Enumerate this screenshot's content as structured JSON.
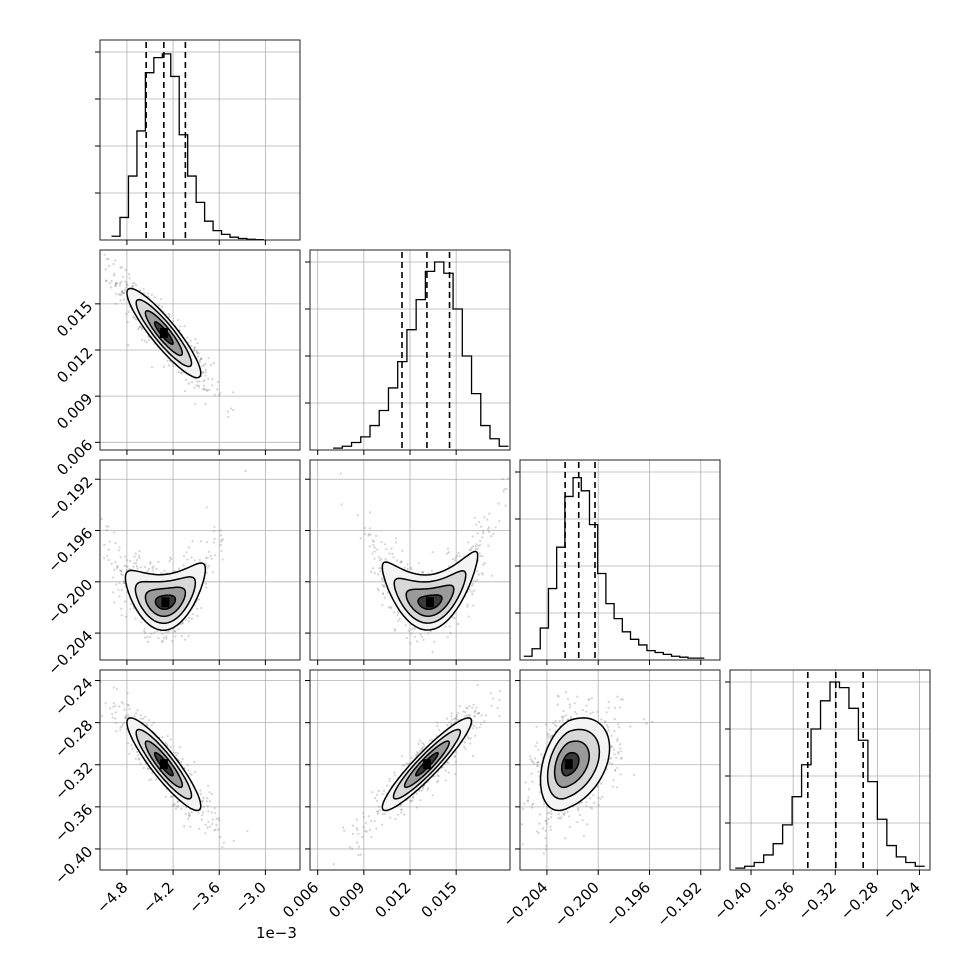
{
  "figure": {
    "x_offset_text": "1e−3"
  },
  "chart_data": {
    "type": "corner",
    "parameters": [
      {
        "index": 0,
        "range": [
          -5.15,
          -2.55
        ],
        "ticks": [
          -4.8,
          -4.2,
          -3.6,
          -3.0
        ],
        "tick_labels": [
          "−4.8",
          "−4.2",
          "−3.6",
          "−3.0"
        ],
        "quantiles": [
          -4.55,
          -4.32,
          -4.04
        ],
        "mode": -4.32,
        "scale_note": "1e−3",
        "hist_edges": [
          -5.0,
          -4.89,
          -4.78,
          -4.67,
          -4.56,
          -4.45,
          -4.34,
          -4.23,
          -4.12,
          -4.01,
          -3.9,
          -3.79,
          -3.68,
          -3.57,
          -3.46,
          -3.35,
          -3.24,
          -3.13,
          -3.02
        ],
        "hist_counts": [
          0.02,
          0.12,
          0.34,
          0.58,
          0.89,
          0.97,
          0.99,
          0.87,
          0.56,
          0.34,
          0.2,
          0.1,
          0.05,
          0.03,
          0.015,
          0.008,
          0.004,
          0.002
        ]
      },
      {
        "index": 1,
        "range": [
          0.0055,
          0.0185
        ],
        "ticks": [
          0.006,
          0.009,
          0.012,
          0.015
        ],
        "tick_labels": [
          "0.006",
          "0.009",
          "0.012",
          "0.015"
        ],
        "quantiles": [
          0.01148,
          0.0131,
          0.01457
        ],
        "hist_edges": [
          0.007,
          0.0076,
          0.0082,
          0.0088,
          0.0094,
          0.01,
          0.0106,
          0.0112,
          0.0118,
          0.0124,
          0.013,
          0.0136,
          0.0142,
          0.0148,
          0.0154,
          0.016,
          0.0166,
          0.0172,
          0.0178,
          0.0184
        ],
        "hist_counts": [
          0.01,
          0.02,
          0.04,
          0.07,
          0.13,
          0.21,
          0.33,
          0.47,
          0.64,
          0.8,
          0.95,
          1.0,
          0.94,
          0.75,
          0.5,
          0.3,
          0.13,
          0.06,
          0.02
        ]
      },
      {
        "index": 2,
        "range": [
          -0.2061,
          -0.1905
        ],
        "ticks": [
          -0.204,
          -0.2,
          -0.196,
          -0.192
        ],
        "tick_labels": [
          "−0.204",
          "−0.200",
          "−0.196",
          "−0.192"
        ],
        "quantiles": [
          -0.20258,
          -0.20152,
          -0.20025
        ],
        "hist_edges": [
          -0.2058,
          -0.20516,
          -0.20452,
          -0.20388,
          -0.20324,
          -0.2026,
          -0.20196,
          -0.20132,
          -0.20068,
          -0.20004,
          -0.1994,
          -0.19876,
          -0.19812,
          -0.19748,
          -0.19684,
          -0.1962,
          -0.19556,
          -0.19492,
          -0.19428,
          -0.19364,
          -0.193,
          -0.19236,
          -0.19172
        ],
        "hist_counts": [
          0.02,
          0.06,
          0.17,
          0.38,
          0.6,
          0.87,
          0.97,
          0.9,
          0.72,
          0.46,
          0.3,
          0.22,
          0.15,
          0.11,
          0.08,
          0.05,
          0.04,
          0.03,
          0.02,
          0.015,
          0.01,
          0.01
        ]
      },
      {
        "index": 3,
        "range": [
          -0.42,
          -0.23
        ],
        "ticks": [
          -0.4,
          -0.36,
          -0.32,
          -0.28,
          -0.24
        ],
        "tick_labels": [
          "−0.40",
          "−0.36",
          "−0.32",
          "−0.28",
          "−0.24"
        ],
        "quantiles": [
          -0.3461,
          -0.3195,
          -0.2935
        ],
        "hist_edges": [
          -0.415,
          -0.406,
          -0.397,
          -0.388,
          -0.379,
          -0.37,
          -0.361,
          -0.352,
          -0.343,
          -0.334,
          -0.325,
          -0.316,
          -0.307,
          -0.298,
          -0.289,
          -0.28,
          -0.271,
          -0.262,
          -0.253,
          -0.244,
          -0.235
        ],
        "hist_counts": [
          0.01,
          0.02,
          0.04,
          0.08,
          0.14,
          0.24,
          0.39,
          0.56,
          0.75,
          0.9,
          1.0,
          0.97,
          0.86,
          0.69,
          0.47,
          0.27,
          0.13,
          0.07,
          0.04,
          0.02
        ]
      }
    ],
    "pairs": [
      {
        "row": 1,
        "col": 0,
        "center": [
          -4.32,
          0.0131
        ],
        "sd": [
          0.24,
          0.00145
        ],
        "rho": -0.9
      },
      {
        "row": 2,
        "col": 0,
        "center": [
          -4.3,
          -0.2016
        ],
        "sd": [
          0.26,
          0.0011
        ],
        "rho": 0.15,
        "banana": "up"
      },
      {
        "row": 2,
        "col": 1,
        "center": [
          0.0133,
          -0.2016
        ],
        "sd": [
          0.00155,
          0.0011
        ],
        "rho": 0.2,
        "banana": "up"
      },
      {
        "row": 3,
        "col": 0,
        "center": [
          -4.32,
          -0.3195
        ],
        "sd": [
          0.24,
          0.022
        ],
        "rho": -0.9
      },
      {
        "row": 3,
        "col": 1,
        "center": [
          0.0131,
          -0.3195
        ],
        "sd": [
          0.00145,
          0.022
        ],
        "rho": 0.93
      },
      {
        "row": 3,
        "col": 2,
        "center": [
          -0.2023,
          -0.3195
        ],
        "sd": [
          0.0011,
          0.022
        ],
        "rho": 0.35,
        "skew": "right"
      }
    ],
    "contour_levels": [
      "0.5 sigma",
      "1 sigma",
      "1.5 sigma",
      "2 sigma"
    ],
    "grid": true,
    "colors": {
      "line": "#000000",
      "points": "#808080",
      "grid": "#b0b0b0"
    }
  }
}
